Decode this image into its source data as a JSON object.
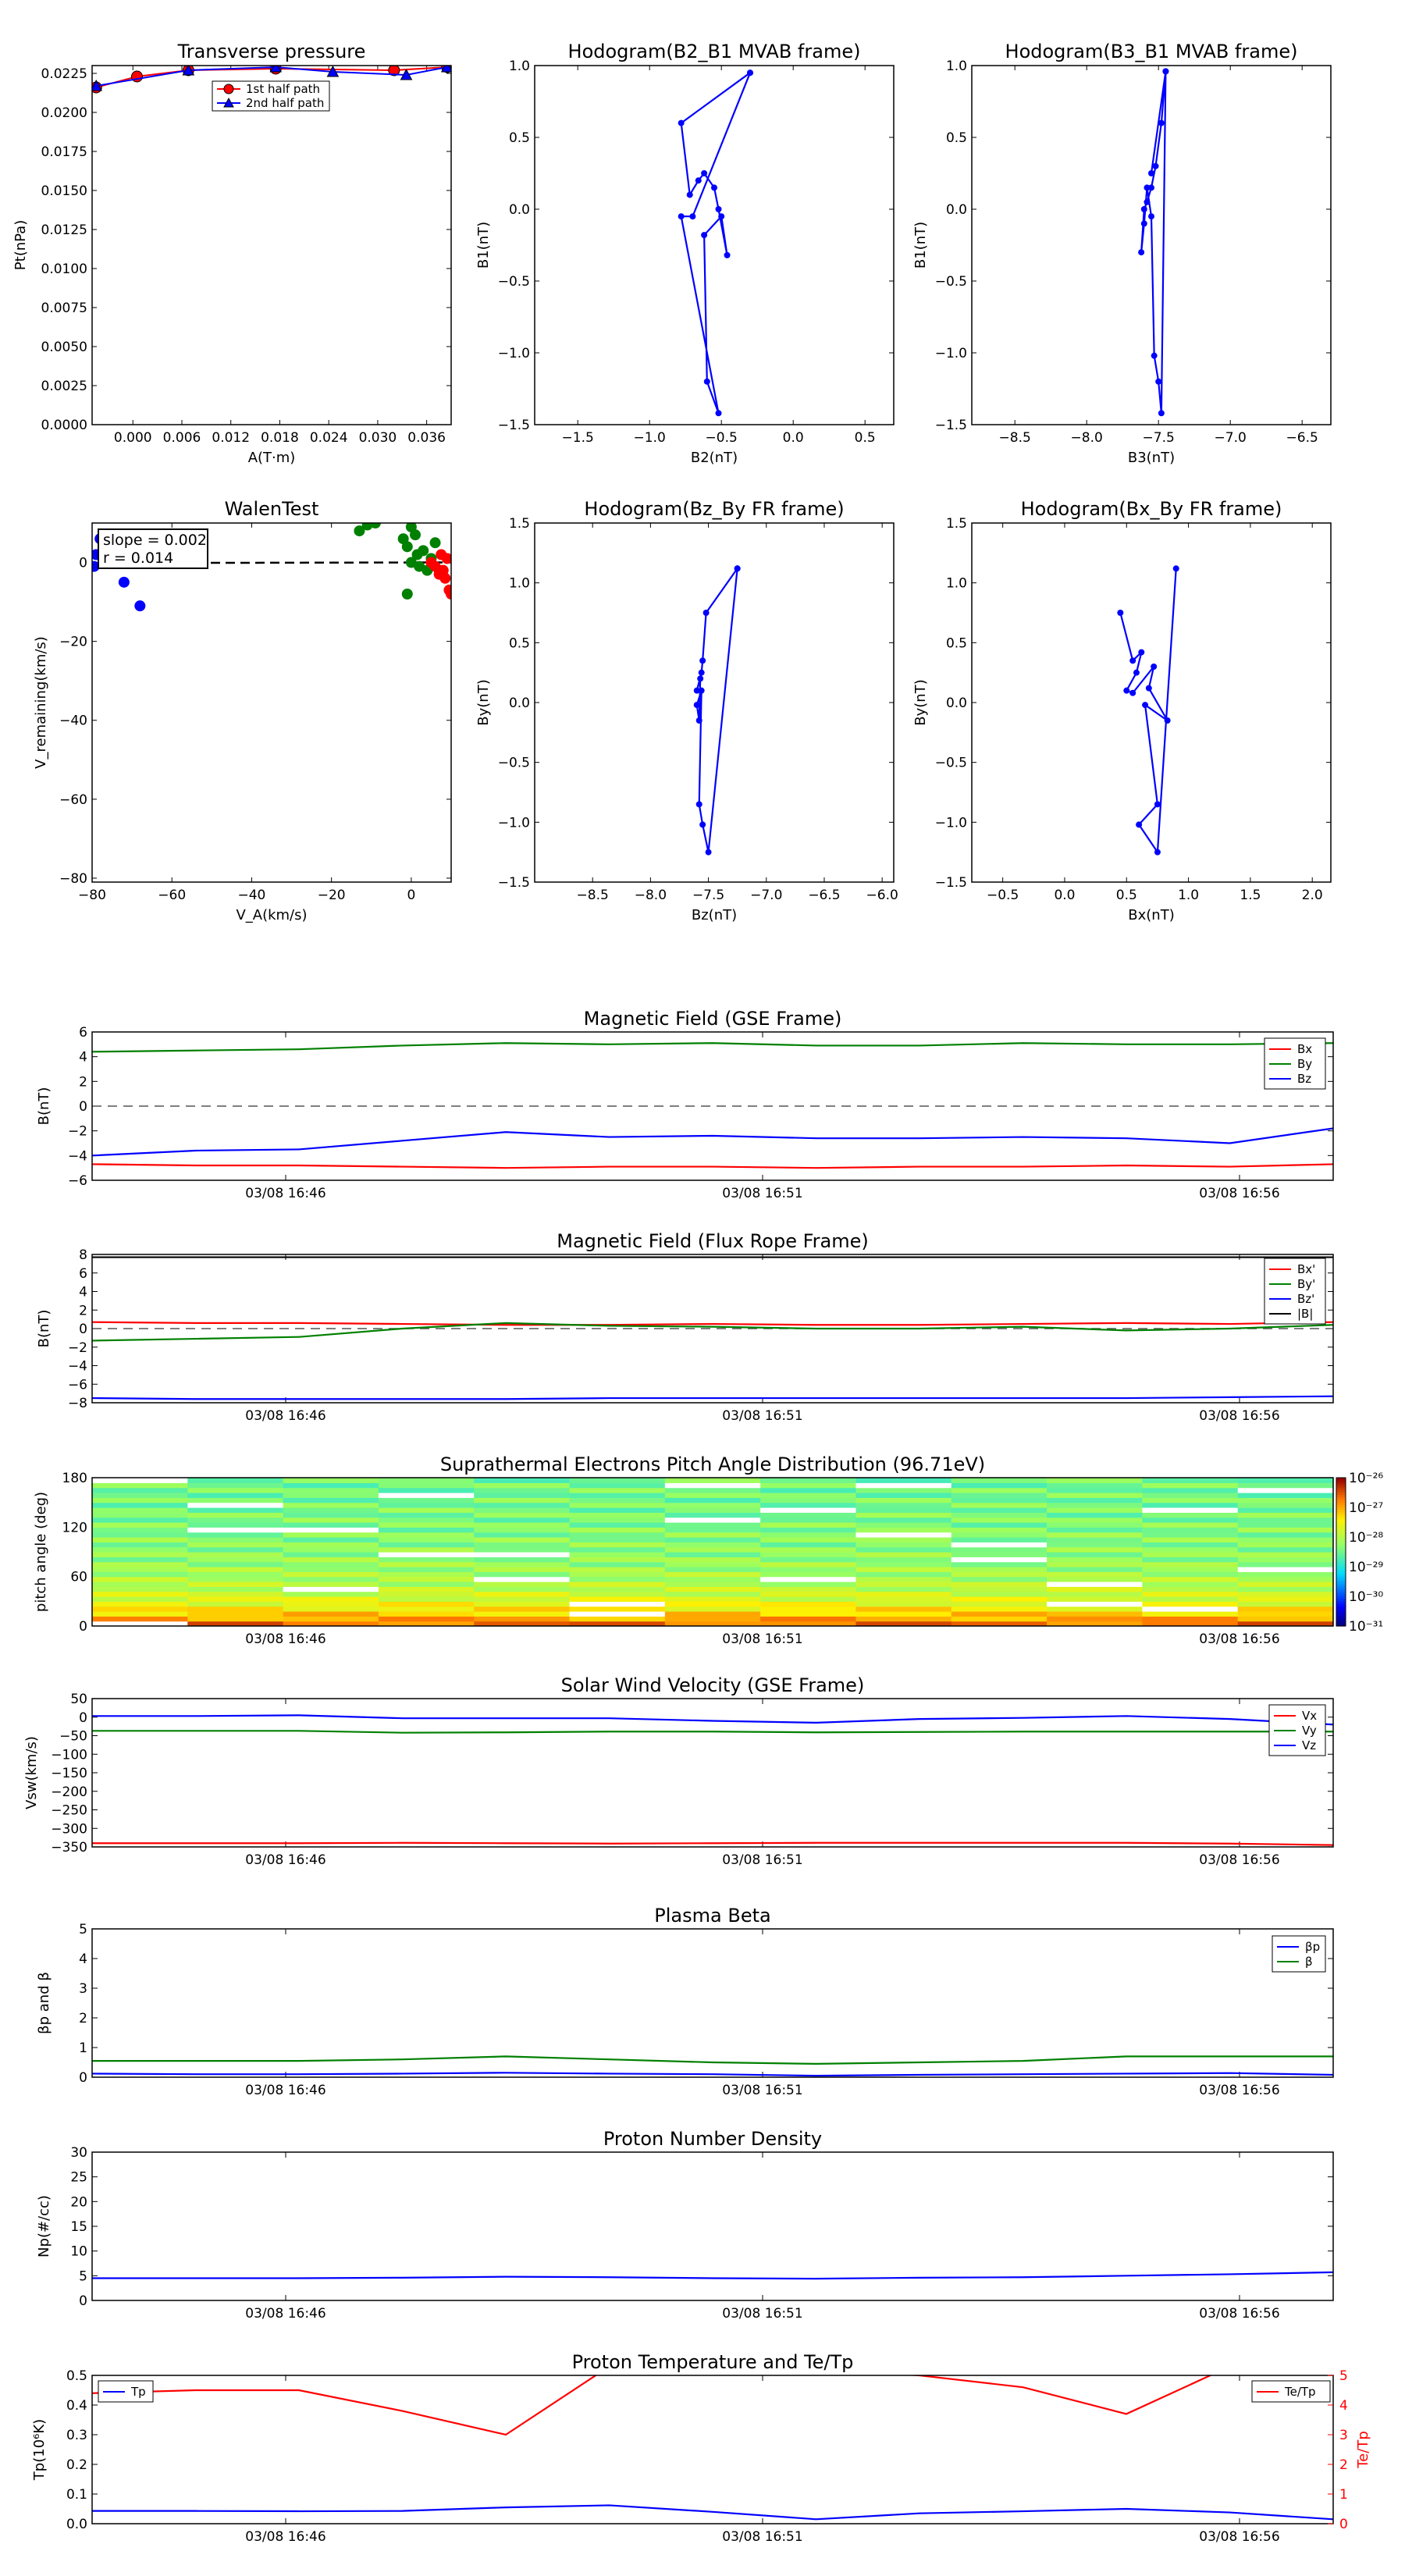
{
  "colors": {
    "red": "#ff0000",
    "green": "#008000",
    "blue": "#0000ff",
    "gray": "#555555"
  },
  "time_ticks": [
    "03/08 16:46",
    "03/08 16:51",
    "03/08 16:56"
  ],
  "chart_data": [
    {
      "id": "pt",
      "type": "line",
      "title": "Transverse pressure",
      "xlabel": "A(T·m)",
      "ylabel": "Pt(nPa)",
      "xlim": [
        -0.005,
        0.039
      ],
      "ylim": [
        0,
        0.023
      ],
      "xticks": [
        "0.000",
        "0.006",
        "0.012",
        "0.018",
        "0.024",
        "0.030",
        "0.036"
      ],
      "yticks": [
        "0.0000",
        "0.0025",
        "0.0050",
        "0.0075",
        "0.0100",
        "0.0125",
        "0.0150",
        "0.0175",
        "0.0200",
        "0.0225"
      ],
      "legend_position": "upper-center",
      "series": [
        {
          "name": "1st half path",
          "marker": "circle",
          "x": [
            -0.0045,
            0.0005,
            0.0068,
            0.0175,
            0.032,
            0.0385
          ],
          "y": [
            0.0216,
            0.0223,
            0.0227,
            0.0228,
            0.0227,
            0.0229
          ]
        },
        {
          "name": "2nd half path",
          "marker": "triangle",
          "x": [
            -0.0045,
            0.0068,
            0.0175,
            0.0245,
            0.0335,
            0.0385
          ],
          "y": [
            0.0217,
            0.0227,
            0.0229,
            0.0226,
            0.0224,
            0.0229
          ]
        }
      ]
    },
    {
      "id": "h1",
      "type": "line",
      "title": "Hodogram(B2_B1 MVAB frame)",
      "xlabel": "B2(nT)",
      "ylabel": "B1(nT)",
      "xlim": [
        -1.8,
        0.7
      ],
      "ylim": [
        -1.5,
        1.0
      ],
      "xticks": [
        "−1.5",
        "−1.0",
        "−0.5",
        "0.0",
        "0.5"
      ],
      "yticks": [
        "−1.5",
        "−1.0",
        "−0.5",
        "0.0",
        "0.5",
        "1.0"
      ],
      "series": [
        {
          "x": [
            -0.3,
            -0.78,
            -0.72,
            -0.66,
            -0.62,
            -0.55,
            -0.52,
            -0.46,
            -0.5,
            -0.62,
            -0.6,
            -0.52,
            -0.78,
            -0.7,
            -0.3
          ],
          "y": [
            0.95,
            0.6,
            0.1,
            0.2,
            0.25,
            0.15,
            0.0,
            -0.32,
            -0.05,
            -0.18,
            -1.2,
            -1.42,
            -0.05,
            -0.05,
            0.95
          ]
        }
      ]
    },
    {
      "id": "h2",
      "type": "line",
      "title": "Hodogram(B3_B1 MVAB frame)",
      "xlabel": "B3(nT)",
      "ylabel": "B1(nT)",
      "xlim": [
        -8.8,
        -6.3
      ],
      "ylim": [
        -1.5,
        1.0
      ],
      "xticks": [
        "−8.5",
        "−8.0",
        "−7.5",
        "−7.0",
        "−6.5"
      ],
      "yticks": [
        "−1.5",
        "−1.0",
        "−0.5",
        "0.0",
        "0.5",
        "1.0"
      ],
      "series": [
        {
          "x": [
            -7.45,
            -7.48,
            -7.52,
            -7.55,
            -7.58,
            -7.6,
            -7.62,
            -7.6,
            -7.58,
            -7.55,
            -7.53,
            -7.5,
            -7.48,
            -7.45,
            -7.55
          ],
          "y": [
            0.96,
            0.6,
            0.3,
            0.15,
            0.05,
            0.0,
            -0.3,
            -0.1,
            0.15,
            -0.05,
            -1.02,
            -1.2,
            -1.42,
            0.96,
            0.25
          ]
        }
      ]
    },
    {
      "id": "walen",
      "type": "scatter",
      "title": "WalenTest",
      "xlabel": "V_A(km/s)",
      "ylabel": "V_remaining(km/s)",
      "xlim": [
        -80,
        10
      ],
      "ylim": [
        -81,
        10
      ],
      "xticks": [
        "−80",
        "−60",
        "−40",
        "−20",
        "0"
      ],
      "yticks": [
        "−80",
        "−60",
        "−40",
        "−20",
        "0"
      ],
      "annotation": [
        "slope = 0.002",
        "r = 0.014"
      ],
      "fit": {
        "slope": 0.002,
        "intercept": 0
      },
      "series": [
        {
          "color": "blue",
          "x": [
            -79.5,
            -79,
            -78,
            -72,
            -68
          ],
          "y": [
            -1,
            2,
            6,
            -5,
            -11
          ]
        },
        {
          "color": "green",
          "x": [
            -13,
            -11,
            -9,
            -2,
            -1,
            0,
            1,
            1.5,
            2,
            3,
            4,
            5,
            6,
            -1,
            0
          ],
          "y": [
            8,
            9.5,
            10,
            6,
            4,
            9,
            7,
            2,
            -1,
            3,
            -2,
            1,
            5,
            -8,
            0
          ]
        },
        {
          "color": "red",
          "x": [
            5,
            6,
            7,
            7.5,
            8,
            8.5,
            9,
            9.5,
            10,
            7
          ],
          "y": [
            0,
            -1,
            -3,
            2,
            -2,
            -4,
            1,
            -7,
            -8,
            -2
          ]
        }
      ]
    },
    {
      "id": "h3",
      "type": "line",
      "title": "Hodogram(Bz_By FR frame)",
      "xlabel": "Bz(nT)",
      "ylabel": "By(nT)",
      "xlim": [
        -9.0,
        -5.9
      ],
      "ylim": [
        -1.5,
        1.5
      ],
      "xticks": [
        "−8.5",
        "−8.0",
        "−7.5",
        "−7.0",
        "−6.5",
        "−6.0"
      ],
      "yticks": [
        "−1.5",
        "−1.0",
        "−0.5",
        "0.0",
        "0.5",
        "1.0",
        "1.5"
      ],
      "series": [
        {
          "x": [
            -7.25,
            -7.52,
            -7.55,
            -7.56,
            -7.6,
            -7.57,
            -7.58,
            -7.6,
            -7.56,
            -7.58,
            -7.55,
            -7.5,
            -7.25
          ],
          "y": [
            1.12,
            0.75,
            0.35,
            0.25,
            0.1,
            0.2,
            -0.15,
            -0.02,
            0.1,
            -0.85,
            -1.02,
            -1.25,
            1.12
          ]
        }
      ]
    },
    {
      "id": "h4",
      "type": "line",
      "title": "Hodogram(Bx_By FR frame)",
      "xlabel": "Bx(nT)",
      "ylabel": "By(nT)",
      "xlim": [
        -0.75,
        2.15
      ],
      "ylim": [
        -1.5,
        1.5
      ],
      "xticks": [
        "−0.5",
        "0.0",
        "0.5",
        "1.0",
        "1.5",
        "2.0"
      ],
      "yticks": [
        "−1.5",
        "−1.0",
        "−0.5",
        "0.0",
        "0.5",
        "1.0",
        "1.5"
      ],
      "series": [
        {
          "x": [
            0.45,
            0.55,
            0.62,
            0.58,
            0.5,
            0.55,
            0.72,
            0.68,
            0.83,
            0.65,
            0.75,
            0.6,
            0.75,
            0.9
          ],
          "y": [
            0.75,
            0.35,
            0.42,
            0.25,
            0.1,
            0.08,
            0.3,
            0.12,
            -0.15,
            -0.02,
            -0.85,
            -1.02,
            -1.25,
            1.12
          ]
        }
      ]
    },
    {
      "id": "bgse",
      "type": "line",
      "title": "Magnetic Field (GSE Frame)",
      "ylabel": "B(nT)",
      "ylim": [
        -6,
        6
      ],
      "yticks": [
        "−6",
        "−4",
        "−2",
        "0",
        "2",
        "4",
        "6"
      ],
      "yticks_values": [
        -6,
        -4,
        -2,
        0,
        2,
        4,
        6
      ],
      "hline": 0,
      "legend_position": "upper-right",
      "series": [
        {
          "name": "Bx",
          "color": "red",
          "values": [
            -4.7,
            -4.8,
            -4.8,
            -4.9,
            -5.0,
            -4.9,
            -4.9,
            -5.0,
            -4.9,
            -4.9,
            -4.8,
            -4.9,
            -4.7
          ]
        },
        {
          "name": "By",
          "color": "green",
          "values": [
            4.4,
            4.5,
            4.6,
            4.9,
            5.1,
            5.0,
            5.1,
            4.9,
            4.9,
            5.1,
            5.0,
            5.0,
            5.1
          ]
        },
        {
          "name": "Bz",
          "color": "blue",
          "values": [
            -4.0,
            -3.6,
            -3.5,
            -2.8,
            -2.1,
            -2.5,
            -2.4,
            -2.6,
            -2.6,
            -2.5,
            -2.6,
            -3.0,
            -1.8
          ]
        }
      ]
    },
    {
      "id": "bfr",
      "type": "line",
      "title": "Magnetic Field (Flux Rope Frame)",
      "ylabel": "B(nT)",
      "ylim": [
        -8,
        8
      ],
      "yticks": [
        "−8",
        "−6",
        "−4",
        "−2",
        "0",
        "2",
        "4",
        "6",
        "8"
      ],
      "yticks_values": [
        -8,
        -6,
        -4,
        -2,
        0,
        2,
        4,
        6,
        8
      ],
      "hline": 0,
      "legend_position": "upper-right",
      "series": [
        {
          "name": "Bx'",
          "color": "red",
          "values": [
            0.7,
            0.6,
            0.6,
            0.5,
            0.4,
            0.4,
            0.5,
            0.4,
            0.4,
            0.5,
            0.6,
            0.5,
            0.7
          ]
        },
        {
          "name": "By'",
          "color": "green",
          "values": [
            -1.3,
            -1.1,
            -0.9,
            0.0,
            0.6,
            0.3,
            0.2,
            0.0,
            0.0,
            0.2,
            -0.2,
            0.0,
            0.4
          ]
        },
        {
          "name": "Bz'",
          "color": "blue",
          "values": [
            -7.5,
            -7.6,
            -7.6,
            -7.6,
            -7.6,
            -7.5,
            -7.5,
            -7.5,
            -7.5,
            -7.5,
            -7.5,
            -7.4,
            -7.3
          ]
        },
        {
          "name": "|B|",
          "color": "black",
          "values": [
            7.7,
            7.7,
            7.7,
            7.7,
            7.7,
            7.7,
            7.7,
            7.7,
            7.7,
            7.7,
            7.7,
            7.7,
            7.7
          ]
        }
      ]
    },
    {
      "id": "pad",
      "type": "heatmap",
      "title": "Suprathermal Electrons Pitch Angle Distribution (96.71eV)",
      "ylabel": "pitch angle (deg)",
      "ylim": [
        0,
        180
      ],
      "yticks": [
        "0",
        "60",
        "120",
        "180"
      ],
      "yticks_values": [
        0,
        60,
        120,
        180
      ],
      "colorbar_ticks": [
        "10⁻²⁶",
        "10⁻²⁷",
        "10⁻²⁸",
        "10⁻²⁹",
        "10⁻³⁰",
        "10⁻³¹"
      ],
      "colorbar_range_log10": [
        -31,
        -26
      ],
      "n_time": 13,
      "pitch_bins": 30
    },
    {
      "id": "vsw",
      "type": "line",
      "title": "Solar Wind Velocity (GSE Frame)",
      "ylabel": "Vsw(km/s)",
      "ylim": [
        -350,
        50
      ],
      "yticks": [
        "−350",
        "−300",
        "−250",
        "−200",
        "−150",
        "−100",
        "−50",
        "0",
        "50"
      ],
      "yticks_values": [
        -350,
        -300,
        -250,
        -200,
        -150,
        -100,
        -50,
        0,
        50
      ],
      "legend_position": "upper-right",
      "series": [
        {
          "name": "Vx",
          "color": "red",
          "values": [
            -340,
            -340,
            -340,
            -339,
            -340,
            -341,
            -340,
            -339,
            -339,
            -339,
            -339,
            -341,
            -345
          ]
        },
        {
          "name": "Vy",
          "color": "green",
          "values": [
            -37,
            -37,
            -37,
            -42,
            -41,
            -39,
            -39,
            -41,
            -40,
            -39,
            -39,
            -39,
            -39
          ]
        },
        {
          "name": "Vz",
          "color": "blue",
          "values": [
            3,
            3,
            5,
            -3,
            -3,
            -3,
            -10,
            -15,
            -5,
            -2,
            3,
            -5,
            -20
          ]
        }
      ]
    },
    {
      "id": "beta",
      "type": "line",
      "title": "Plasma Beta",
      "ylabel": "βp and β",
      "ylim": [
        0,
        5
      ],
      "yticks": [
        "0",
        "1",
        "2",
        "3",
        "4",
        "5"
      ],
      "yticks_values": [
        0,
        1,
        2,
        3,
        4,
        5
      ],
      "legend_position": "upper-right",
      "series": [
        {
          "name": "βp",
          "color": "blue",
          "values": [
            0.12,
            0.1,
            0.1,
            0.12,
            0.15,
            0.12,
            0.1,
            0.05,
            0.08,
            0.1,
            0.12,
            0.14,
            0.08
          ]
        },
        {
          "name": "β",
          "color": "green",
          "values": [
            0.55,
            0.55,
            0.55,
            0.6,
            0.7,
            0.6,
            0.5,
            0.45,
            0.5,
            0.55,
            0.7,
            0.7,
            0.7
          ]
        }
      ]
    },
    {
      "id": "np",
      "type": "line",
      "title": "Proton Number Density",
      "ylabel": "Np(#/cc)",
      "ylim": [
        0,
        30
      ],
      "yticks": [
        "0",
        "5",
        "10",
        "15",
        "20",
        "25",
        "30"
      ],
      "yticks_values": [
        0,
        5,
        10,
        15,
        20,
        25,
        30
      ],
      "series": [
        {
          "color": "blue",
          "values": [
            4.5,
            4.5,
            4.5,
            4.6,
            4.8,
            4.7,
            4.5,
            4.4,
            4.6,
            4.7,
            5.0,
            5.3,
            5.7
          ]
        }
      ]
    },
    {
      "id": "tp",
      "type": "line",
      "title": "Proton Temperature and Te/Tp",
      "ylabel": "Tp(10⁶K)",
      "ylabel_right": "Te/Tp",
      "ylim": [
        0,
        0.5
      ],
      "yticks": [
        "0.0",
        "0.1",
        "0.2",
        "0.3",
        "0.4",
        "0.5"
      ],
      "yticks_values": [
        0,
        0.1,
        0.2,
        0.3,
        0.4,
        0.5
      ],
      "ylim_right": [
        0,
        5
      ],
      "yticks_right": [
        "0",
        "1",
        "2",
        "3",
        "4",
        "5"
      ],
      "yticks_right_values": [
        0,
        1,
        2,
        3,
        4,
        5
      ],
      "series": [
        {
          "name": "Tp",
          "color": "blue",
          "axis": "left",
          "values": [
            0.043,
            0.043,
            0.042,
            0.043,
            0.055,
            0.062,
            0.04,
            0.015,
            0.035,
            0.042,
            0.05,
            0.038,
            0.015
          ]
        },
        {
          "name": "Te/Tp",
          "color": "red",
          "axis": "right",
          "values": [
            4.4,
            4.5,
            4.5,
            3.8,
            3.0,
            5.3,
            5.5,
            5.2,
            5.0,
            4.6,
            3.7,
            5.3,
            5.5
          ]
        }
      ]
    }
  ]
}
